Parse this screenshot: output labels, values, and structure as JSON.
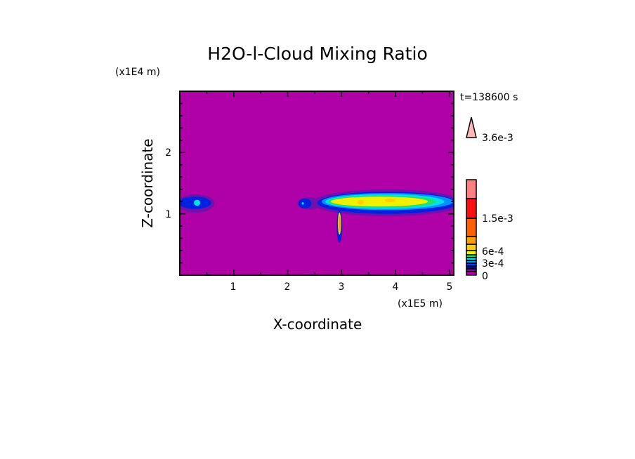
{
  "chart_data": {
    "type": "heatmap",
    "title": "H2O-l-Cloud Mixing Ratio",
    "xlabel": "X-coordinate",
    "ylabel": "Z-coordinate",
    "x_unit_label": "(x1E5 m)",
    "y_unit_label": "(x1E4 m)",
    "time_label": "t=138600 s",
    "xlim": [
      0,
      5.08
    ],
    "ylim": [
      0,
      3
    ],
    "x_ticks": [
      "1",
      "2",
      "3",
      "4",
      "5"
    ],
    "y_ticks": [
      "1",
      "2"
    ],
    "background_color": "#b000a8",
    "colorbar": {
      "labels": [
        "0",
        "3e-4",
        "6e-4",
        "1.5e-3",
        "3.6e-3"
      ],
      "colors": [
        "#b000a8",
        "#7010b0",
        "#0010a0",
        "#0040ff",
        "#0090ff",
        "#00e0e8",
        "#20e070",
        "#f0f000",
        "#ffd000",
        "#ffa000",
        "#ff6000",
        "#ff1010",
        "#ff8080",
        "#ffb8b8"
      ]
    },
    "features": [
      {
        "name": "left-cloud",
        "layers": [
          {
            "color": "#7010b0",
            "cx": 0.3,
            "cz": 1.17,
            "rx": 0.34,
            "rz": 0.15
          },
          {
            "color": "#0020e0",
            "cx": 0.28,
            "cz": 1.18,
            "rx": 0.3,
            "rz": 0.1
          },
          {
            "color": "#00e0e8",
            "cx": 0.32,
            "cz": 1.18,
            "rx": 0.06,
            "rz": 0.05
          }
        ]
      },
      {
        "name": "middle-cloud",
        "layers": [
          {
            "color": "#7010b0",
            "cx": 2.4,
            "cz": 1.17,
            "rx": 0.22,
            "rz": 0.1
          },
          {
            "color": "#0020e0",
            "cx": 2.32,
            "cz": 1.17,
            "rx": 0.12,
            "rz": 0.08
          },
          {
            "color": "#00e0e8",
            "cx": 2.28,
            "cz": 1.17,
            "rx": 0.02,
            "rz": 0.02
          }
        ]
      },
      {
        "name": "main-cloud",
        "layers": [
          {
            "color": "#7010b0",
            "cx": 3.85,
            "cz": 1.18,
            "rx": 1.4,
            "rz": 0.22
          },
          {
            "color": "#0020e0",
            "cx": 3.85,
            "cz": 1.18,
            "rx": 1.3,
            "rz": 0.18
          },
          {
            "color": "#0090ff",
            "cx": 3.85,
            "cz": 1.2,
            "rx": 1.22,
            "rz": 0.14
          },
          {
            "color": "#00e0e8",
            "cx": 3.8,
            "cz": 1.2,
            "rx": 1.1,
            "rz": 0.12
          },
          {
            "color": "#20e070",
            "cx": 3.75,
            "cz": 1.2,
            "rx": 1.0,
            "rz": 0.1
          },
          {
            "color": "#f0f000",
            "cx": 3.7,
            "cz": 1.2,
            "rx": 0.9,
            "rz": 0.08
          },
          {
            "color": "#ffd000",
            "cx": 3.35,
            "cz": 1.19,
            "rx": 0.06,
            "rz": 0.04
          },
          {
            "color": "#ffd000",
            "cx": 3.9,
            "cz": 1.22,
            "rx": 0.1,
            "rz": 0.03
          }
        ]
      },
      {
        "name": "convective-column",
        "layers": [
          {
            "color": "#0020e0",
            "cx": 2.96,
            "cz": 0.8,
            "rx": 0.05,
            "rz": 0.27
          },
          {
            "color": "#ffd000",
            "cx": 2.96,
            "cz": 0.84,
            "rx": 0.03,
            "rz": 0.18
          },
          {
            "color": "#ffa000",
            "cx": 2.96,
            "cz": 0.84,
            "rx": 0.02,
            "rz": 0.12
          }
        ]
      }
    ]
  }
}
